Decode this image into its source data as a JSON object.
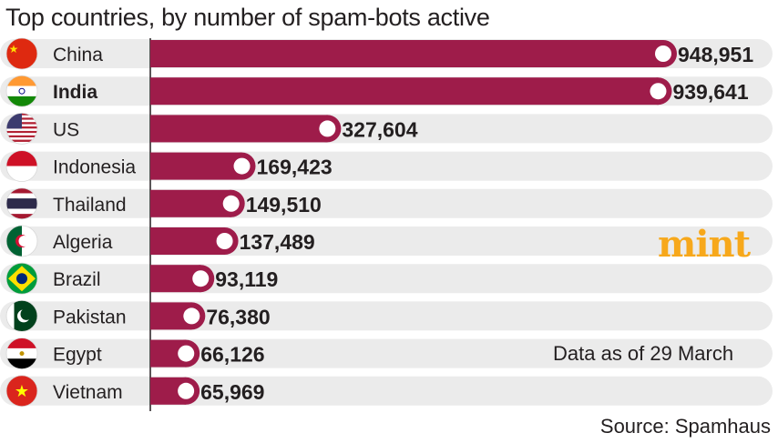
{
  "chart_data": {
    "type": "bar",
    "orientation": "horizontal",
    "title": "Top countries, by number of spam-bots active",
    "categories": [
      "China",
      "India",
      "US",
      "Indonesia",
      "Thailand",
      "Algeria",
      "Brazil",
      "Pakistan",
      "Egypt",
      "Vietnam"
    ],
    "values": [
      948951,
      939641,
      327604,
      169423,
      149510,
      137489,
      93119,
      76380,
      66126,
      65969
    ],
    "value_labels": [
      "948,951",
      "939,641",
      "327,604",
      "169,423",
      "149,510",
      "137,489",
      "93,119",
      "76,380",
      "66,126",
      "65,969"
    ],
    "highlighted_category": "India",
    "xlim": [
      0,
      948951
    ],
    "grid": false,
    "colors": {
      "bar": "#9e1c4a",
      "row_band": "#ebebeb",
      "dot": "#ffffff"
    }
  },
  "flags": [
    {
      "country": "China",
      "icon": "china-flag-icon"
    },
    {
      "country": "India",
      "icon": "india-flag-icon"
    },
    {
      "country": "US",
      "icon": "us-flag-icon"
    },
    {
      "country": "Indonesia",
      "icon": "indonesia-flag-icon"
    },
    {
      "country": "Thailand",
      "icon": "thailand-flag-icon"
    },
    {
      "country": "Algeria",
      "icon": "algeria-flag-icon"
    },
    {
      "country": "Brazil",
      "icon": "brazil-flag-icon"
    },
    {
      "country": "Pakistan",
      "icon": "pakistan-flag-icon"
    },
    {
      "country": "Egypt",
      "icon": "egypt-flag-icon"
    },
    {
      "country": "Vietnam",
      "icon": "vietnam-flag-icon"
    }
  ],
  "logo": "mint",
  "logo_color": "#f7a81b",
  "note": "Data as of 29 March",
  "source": "Source: Spamhaus"
}
